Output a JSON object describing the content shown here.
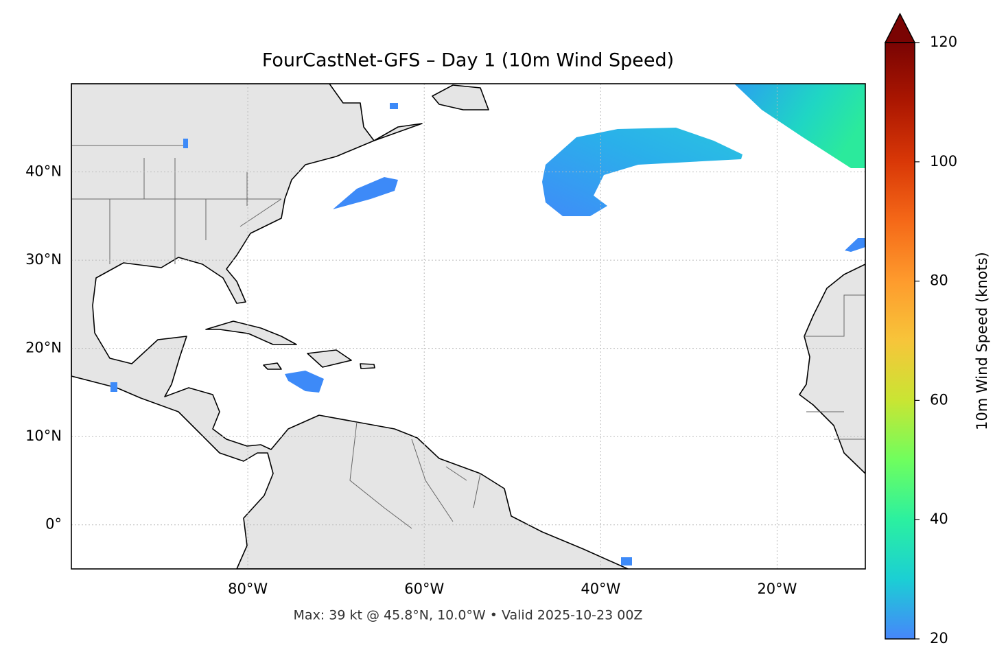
{
  "chart_data": {
    "type": "map",
    "title": "FourCastNet-GFS – Day 1 (10m Wind Speed)",
    "annotation": "Max: 39 kt @ 45.8°N, 10.0°W • Valid 2025-10-23 00Z",
    "xlim": [
      -100,
      -10
    ],
    "ylim": [
      -5,
      50
    ],
    "xticks": [
      {
        "value": -80,
        "label": "80°W"
      },
      {
        "value": -60,
        "label": "60°W"
      },
      {
        "value": -40,
        "label": "40°W"
      },
      {
        "value": -20,
        "label": "20°W"
      }
    ],
    "yticks": [
      {
        "value": 0,
        "label": "0°"
      },
      {
        "value": 10,
        "label": "10°N"
      },
      {
        "value": 20,
        "label": "20°N"
      },
      {
        "value": 30,
        "label": "30°N"
      },
      {
        "value": 40,
        "label": "40°N"
      }
    ],
    "grid": true,
    "colorbar": {
      "label": "10m Wind Speed (knots)",
      "lim": [
        20,
        120
      ],
      "ticks": [
        20,
        40,
        60,
        80,
        100,
        120
      ],
      "colors": [
        "#4686fb",
        "#1bcfd4",
        "#2bf0a0",
        "#6ffe5e",
        "#c9e533",
        "#f7c53a",
        "#fe9b2d",
        "#f56918",
        "#d93807",
        "#ac1701",
        "#7a0403"
      ],
      "extend": "max"
    }
  }
}
